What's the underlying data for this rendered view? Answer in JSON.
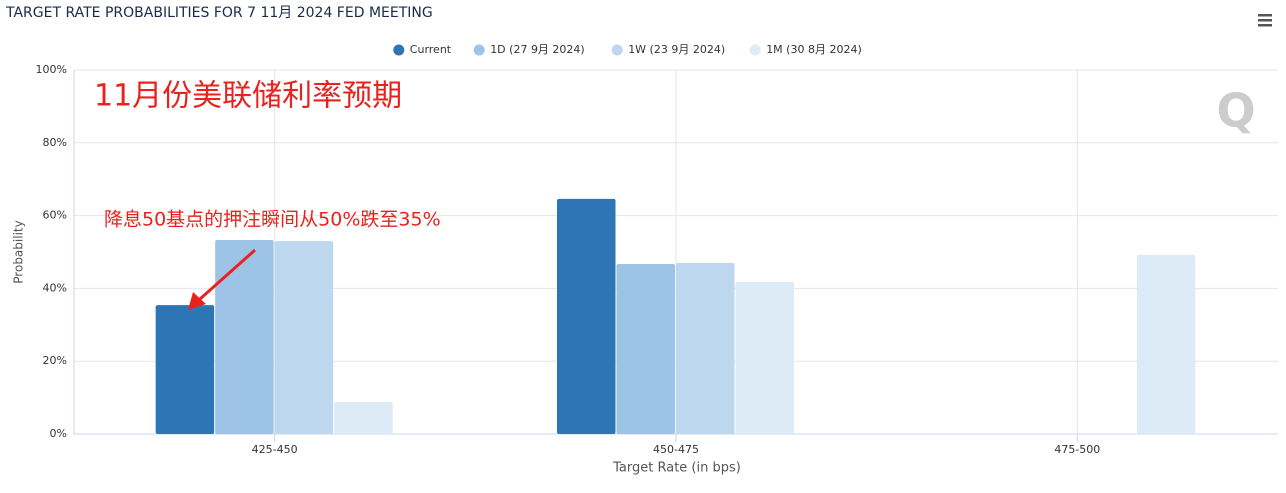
{
  "chart_data": {
    "type": "bar",
    "title": "TARGET RATE PROBABILITIES FOR 7 11月 2024 FED MEETING",
    "x_label": "Target Rate (in bps)",
    "y_label": "Probability",
    "annotations": [
      "11月份美联储利率预期",
      "降息50基点的押注瞬间从50%跌至35%"
    ],
    "categories": [
      "425-450",
      "450-475",
      "475-500"
    ],
    "series": [
      {
        "name": "Current",
        "color": "#2e75b6",
        "values": [
          35.4,
          64.6,
          0
        ]
      },
      {
        "name": "1D (27 9月 2024)",
        "color": "#9dc3e6",
        "values": [
          53.3,
          46.7,
          0
        ]
      },
      {
        "name": "1W (23 9月 2024)",
        "color": "#bdd7ee",
        "values": [
          53.0,
          47.0,
          0
        ]
      },
      {
        "name": "1M (30 8月 2024)",
        "color": "#ddebf7",
        "values": [
          8.8,
          41.8,
          49.2
        ]
      }
    ],
    "ylim": [
      0,
      100
    ],
    "yticks": [
      {
        "value": 0,
        "label": "0%"
      },
      {
        "value": 20,
        "label": "20%"
      },
      {
        "value": 40,
        "label": "40%"
      },
      {
        "value": 60,
        "label": "60%"
      },
      {
        "value": 80,
        "label": "80%"
      },
      {
        "value": 100,
        "label": "100%"
      }
    ],
    "grid": true
  }
}
